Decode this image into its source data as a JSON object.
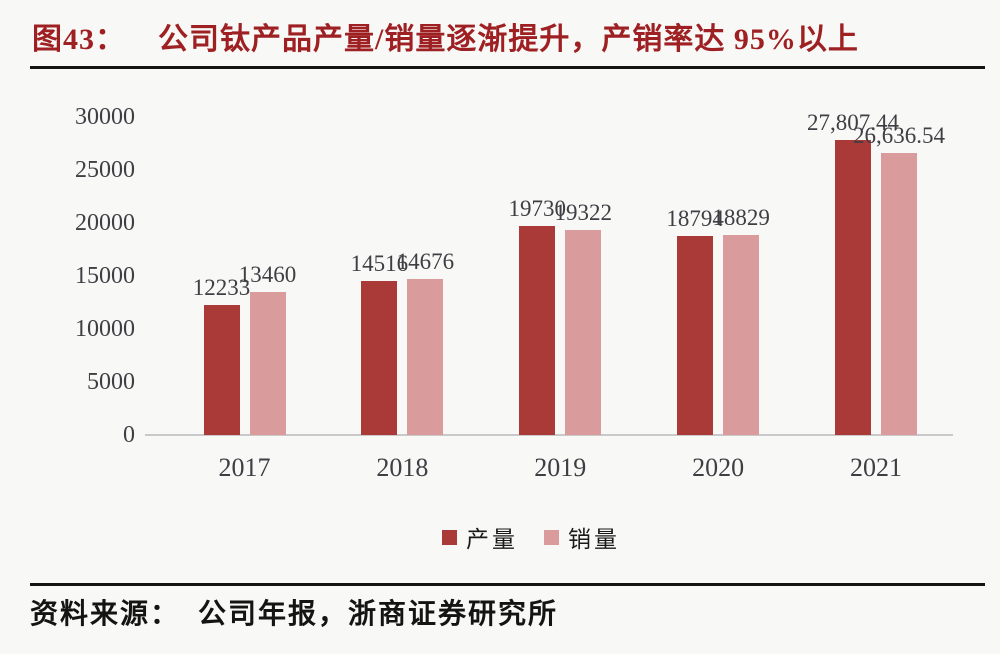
{
  "title": {
    "figure_label": "图43：",
    "text": "公司钛产品产量/销量逐渐提升，产销率达 95%以上"
  },
  "source": {
    "label": "资料来源：",
    "text": "公司年报，浙商证券研究所"
  },
  "colors": {
    "title": "#9e2023",
    "production_bar": "#a93a38",
    "sales_bar": "#d99b9b",
    "text": "#3e3e44",
    "axis_line": "#c9c9c9",
    "rule": "#141414",
    "background": "#f8f8f6"
  },
  "chart_data": {
    "type": "bar",
    "categories": [
      "2017",
      "2018",
      "2019",
      "2020",
      "2021"
    ],
    "series": [
      {
        "name": "产量",
        "values": [
          12233,
          14516,
          19730,
          18794,
          27807.44
        ],
        "labels": [
          "12233",
          "14516",
          "19730",
          "18794",
          "27,807.44"
        ],
        "color": "#a93a38"
      },
      {
        "name": "销量",
        "values": [
          13460,
          14676,
          19322,
          18829,
          26636.54
        ],
        "labels": [
          "13460",
          "14676",
          "19322",
          "18829",
          "26,636.54"
        ],
        "color": "#d99b9b"
      }
    ],
    "title": "公司钛产品产量/销量逐渐提升，产销率达 95%以上",
    "xlabel": "",
    "ylabel": "",
    "ylim": [
      0,
      30000
    ],
    "ytick_step": 5000,
    "yticks": [
      0,
      5000,
      10000,
      15000,
      20000,
      25000,
      30000
    ],
    "legend": [
      "产量",
      "销量"
    ],
    "legend_position": "bottom",
    "grid": false,
    "data_labels": true
  }
}
